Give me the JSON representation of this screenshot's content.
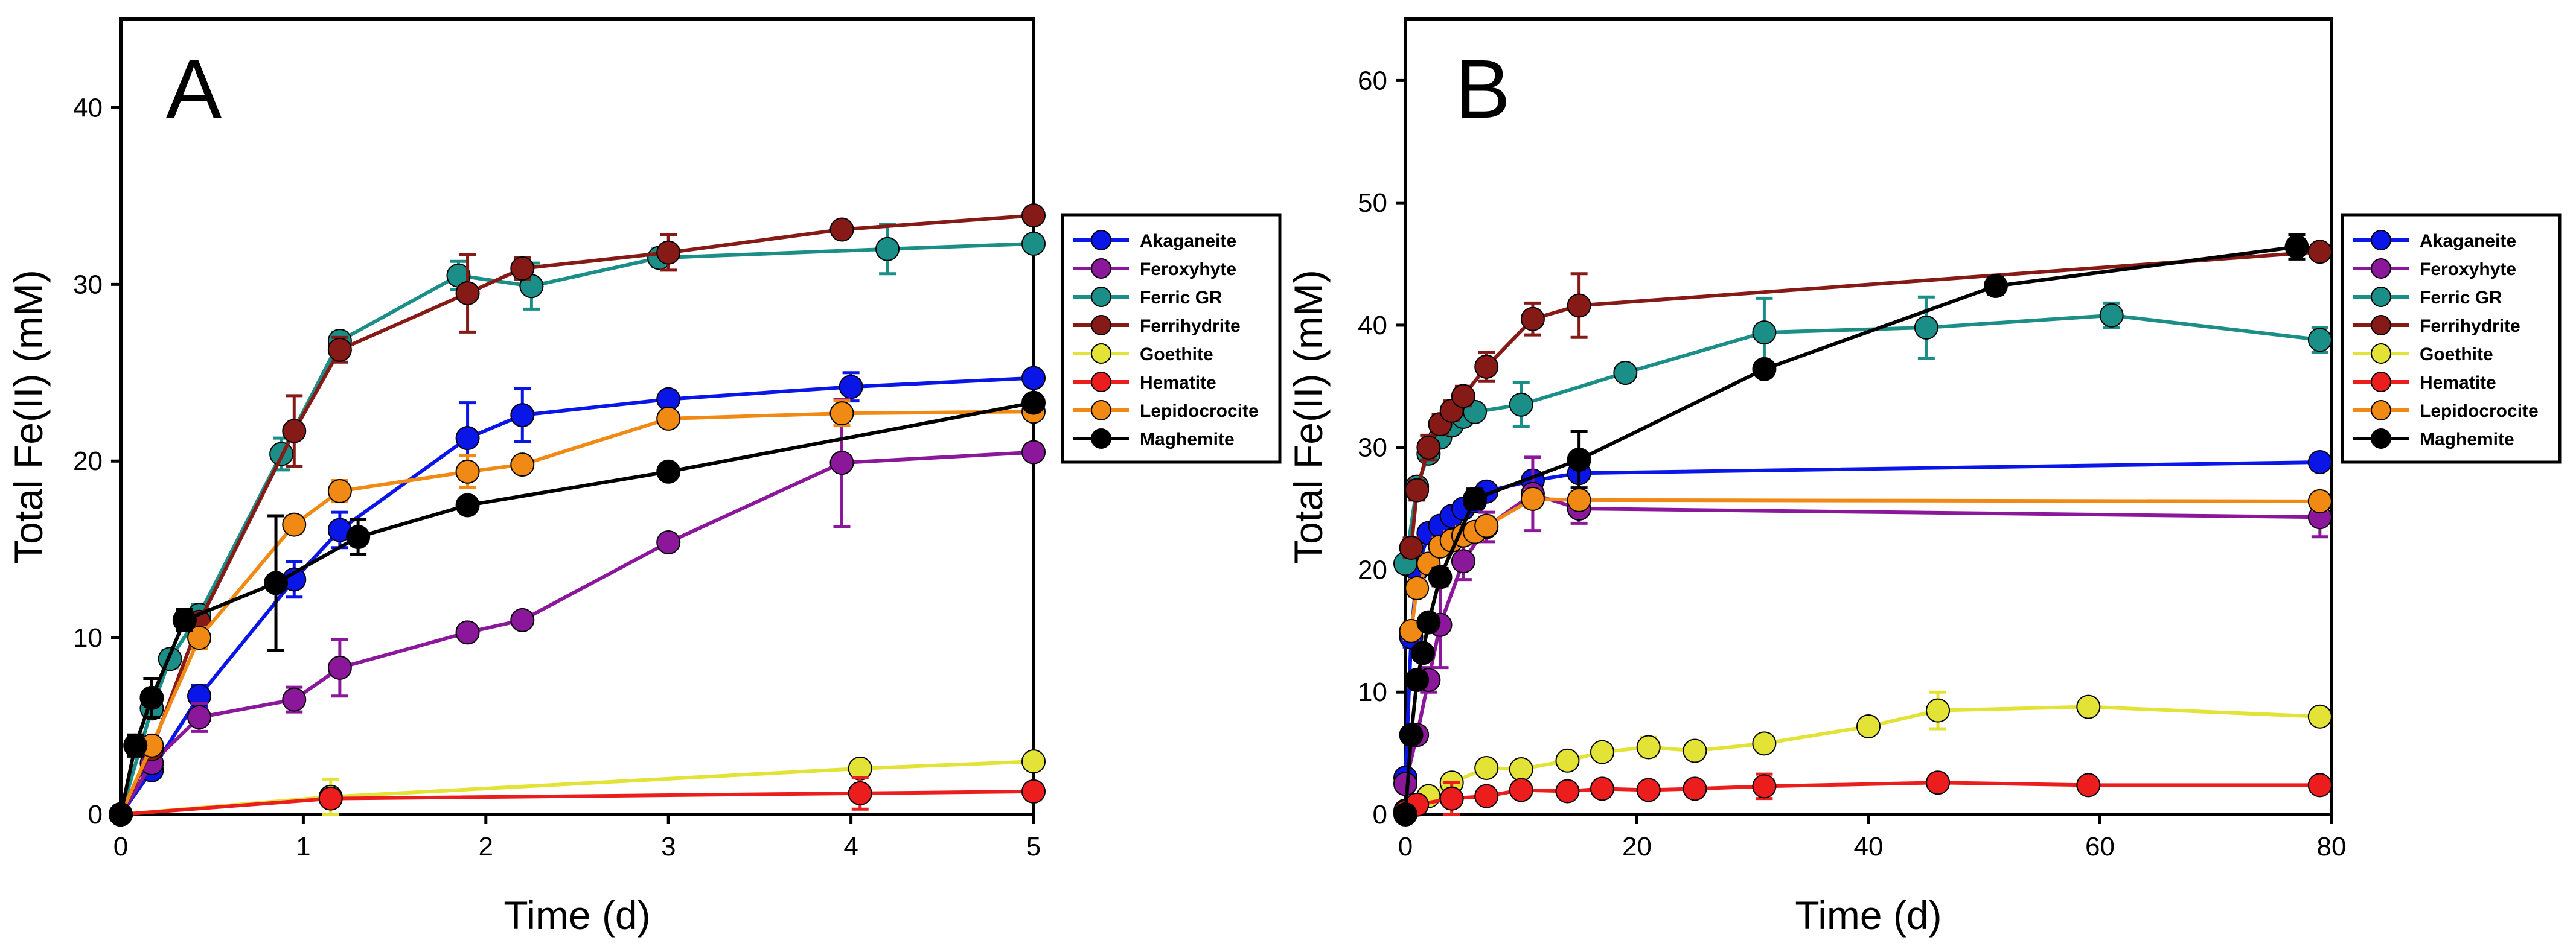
{
  "chart_data": [
    {
      "type": "line",
      "panel_label": "A",
      "xlabel": "Time (d)",
      "ylabel": "Total Fe(II) (mM)",
      "xlim": [
        0,
        5
      ],
      "ylim": [
        0,
        45
      ],
      "xticks": [
        0,
        1,
        2,
        3,
        4,
        5
      ],
      "yticks": [
        0,
        10,
        20,
        30,
        40
      ],
      "legend_position": "right",
      "series": [
        {
          "name": "Akaganeite",
          "color": "#0a16e8",
          "x": [
            0,
            0.17,
            0.43,
            0.95,
            1.2,
            1.9,
            2.2,
            3.0,
            4.0,
            5.0
          ],
          "y": [
            0,
            2.5,
            6.7,
            13.3,
            16.1,
            21.3,
            22.6,
            23.5,
            24.2,
            24.7
          ],
          "err": [
            0,
            0.3,
            0.6,
            1.0,
            1.0,
            2.0,
            1.5,
            0.4,
            0.8,
            0
          ]
        },
        {
          "name": "Feroxyhyte",
          "color": "#8b189a",
          "x": [
            0,
            0.17,
            0.43,
            0.95,
            1.2,
            1.9,
            2.2,
            3.0,
            3.95,
            5.0
          ],
          "y": [
            0,
            2.9,
            5.5,
            6.5,
            8.3,
            10.3,
            11.0,
            15.4,
            19.9,
            20.5
          ],
          "err": [
            0,
            0.3,
            0.8,
            0.7,
            1.6,
            0.4,
            0.3,
            0.3,
            3.6,
            0
          ]
        },
        {
          "name": "Ferric GR",
          "color": "#1b8e87",
          "x": [
            0,
            0.17,
            0.27,
            0.43,
            0.88,
            1.2,
            1.85,
            2.25,
            2.95,
            4.2,
            5.0
          ],
          "y": [
            0,
            6.0,
            8.8,
            11.3,
            20.4,
            26.8,
            30.5,
            29.9,
            31.5,
            32.0,
            32.3
          ],
          "err": [
            0,
            0.5,
            0.5,
            0.6,
            0.9,
            0.5,
            0.8,
            1.3,
            0.5,
            1.4,
            0
          ]
        },
        {
          "name": "Ferrihydrite",
          "color": "#861a16",
          "x": [
            0,
            0.17,
            0.43,
            0.95,
            1.2,
            1.9,
            2.2,
            3.0,
            3.95,
            5.0
          ],
          "y": [
            0,
            3.7,
            10.9,
            21.7,
            26.3,
            29.5,
            30.9,
            31.8,
            33.1,
            33.9
          ],
          "err": [
            0,
            0.4,
            0.5,
            2.0,
            0.7,
            2.2,
            0.6,
            1.0,
            0.3,
            0
          ]
        },
        {
          "name": "Goethite",
          "color": "#e3e337",
          "x": [
            0,
            1.15,
            4.05,
            5.0
          ],
          "y": [
            0,
            1.0,
            2.6,
            3.0
          ],
          "err": [
            0,
            1.0,
            0.4,
            0
          ]
        },
        {
          "name": "Hematite",
          "color": "#ec1d1d",
          "x": [
            0,
            1.15,
            4.05,
            5.0
          ],
          "y": [
            0,
            0.9,
            1.2,
            1.3
          ],
          "err": [
            0,
            0.3,
            0.9,
            0
          ]
        },
        {
          "name": "Lepidocrocite",
          "color": "#f18a14",
          "x": [
            0,
            0.17,
            0.43,
            0.95,
            1.2,
            1.9,
            2.2,
            3.0,
            3.95,
            5.0
          ],
          "y": [
            0,
            3.9,
            10.0,
            16.4,
            18.3,
            19.4,
            19.8,
            22.4,
            22.7,
            22.8
          ],
          "err": [
            0,
            0.4,
            0.6,
            0.5,
            0.6,
            0.9,
            0.4,
            0.4,
            0.7,
            0
          ]
        },
        {
          "name": "Maghemite",
          "color": "#000000",
          "x": [
            0,
            0.08,
            0.17,
            0.35,
            0.85,
            1.3,
            1.9,
            3.0,
            5.0
          ],
          "y": [
            0,
            3.9,
            6.6,
            11.0,
            13.1,
            15.7,
            17.5,
            19.4,
            23.3
          ],
          "err": [
            0,
            0.6,
            1.1,
            0.6,
            3.8,
            1.0,
            0.4,
            0.3,
            0
          ]
        }
      ]
    },
    {
      "type": "line",
      "panel_label": "B",
      "xlabel": "Time (d)",
      "ylabel": "Total Fe(II) (mM)",
      "xlim": [
        0,
        80
      ],
      "ylim": [
        0,
        65
      ],
      "xticks": [
        0,
        20,
        40,
        60,
        80
      ],
      "yticks": [
        0,
        10,
        20,
        30,
        40,
        50,
        60
      ],
      "legend_position": "right",
      "series": [
        {
          "name": "Akaganeite",
          "color": "#0a16e8",
          "x": [
            0,
            0.5,
            1,
            2,
            3,
            4,
            5,
            6,
            7,
            11,
            15,
            79
          ],
          "y": [
            3.0,
            14.5,
            20.0,
            23.0,
            23.6,
            24.4,
            25.0,
            25.6,
            26.4,
            27.3,
            27.9,
            28.8
          ],
          "err": [
            0.3,
            0.8,
            0.8,
            0.6,
            0.6,
            0.6,
            0.6,
            0.5,
            0.5,
            0.6,
            0.5,
            0.6
          ]
        },
        {
          "name": "Feroxyhyte",
          "color": "#8b189a",
          "x": [
            0,
            1,
            2,
            3,
            5,
            7,
            11,
            15,
            79
          ],
          "y": [
            2.5,
            6.5,
            11.0,
            15.5,
            20.7,
            23.5,
            26.2,
            25.0,
            24.3
          ],
          "err": [
            0.3,
            0.6,
            1.0,
            3.5,
            1.5,
            1.2,
            3.0,
            1.2,
            1.6
          ]
        },
        {
          "name": "Ferric GR",
          "color": "#1b8e87",
          "x": [
            0,
            1,
            2,
            3,
            4,
            5,
            6,
            10,
            19,
            31,
            45,
            61,
            79
          ],
          "y": [
            20.5,
            26.8,
            29.5,
            30.8,
            31.8,
            32.5,
            32.9,
            33.5,
            36.1,
            39.4,
            39.8,
            40.8,
            38.8
          ],
          "err": [
            0.5,
            0.6,
            0.6,
            0.6,
            0.6,
            0.6,
            0.6,
            1.8,
            0.6,
            2.8,
            2.5,
            1.0,
            1.0
          ]
        },
        {
          "name": "Ferrihydrite",
          "color": "#861a16",
          "x": [
            0.5,
            1,
            2,
            3,
            4,
            5,
            7,
            11,
            15,
            79
          ],
          "y": [
            21.8,
            26.5,
            30.0,
            31.9,
            33.0,
            34.2,
            36.6,
            40.5,
            41.6,
            46.0
          ],
          "err": [
            0.8,
            0.8,
            1.0,
            0.8,
            0.8,
            0.8,
            1.2,
            1.3,
            2.6,
            0.6
          ]
        },
        {
          "name": "Goethite",
          "color": "#e3e337",
          "x": [
            0,
            2,
            4,
            7,
            10,
            14,
            17,
            21,
            25,
            31,
            40,
            46,
            59,
            79
          ],
          "y": [
            0.3,
            1.5,
            2.6,
            3.8,
            3.7,
            4.4,
            5.1,
            5.5,
            5.2,
            5.8,
            7.2,
            8.5,
            8.8,
            8.0
          ],
          "err": [
            0.2,
            0.3,
            0.3,
            0.4,
            0.3,
            0.4,
            0.4,
            0.8,
            0.4,
            0.4,
            0.4,
            1.5,
            0.4,
            0.4
          ]
        },
        {
          "name": "Hematite",
          "color": "#ec1d1d",
          "x": [
            0,
            1,
            4,
            7,
            10,
            14,
            17,
            21,
            25,
            31,
            46,
            59,
            79
          ],
          "y": [
            0.2,
            0.8,
            1.3,
            1.5,
            2.0,
            1.9,
            2.1,
            2.0,
            2.1,
            2.3,
            2.6,
            2.4,
            2.4
          ],
          "err": [
            0.1,
            0.3,
            1.3,
            0.3,
            0.3,
            0.3,
            0.3,
            0.3,
            0.3,
            1.0,
            0.3,
            0.3,
            0.3
          ]
        },
        {
          "name": "Lepidocrocite",
          "color": "#f18a14",
          "x": [
            0.5,
            1,
            2,
            3,
            4,
            5,
            6,
            7,
            11,
            15,
            79
          ],
          "y": [
            15.0,
            18.5,
            20.5,
            21.9,
            22.4,
            22.8,
            23.1,
            23.6,
            25.8,
            25.7,
            25.6
          ],
          "err": [
            0.7,
            0.7,
            0.7,
            0.7,
            0.7,
            0.7,
            0.7,
            0.7,
            0.7,
            0.7,
            0.7
          ]
        },
        {
          "name": "Maghemite",
          "color": "#000000",
          "x": [
            0,
            0.5,
            1,
            1.5,
            2,
            3,
            6,
            15,
            31,
            51,
            77
          ],
          "y": [
            0,
            6.5,
            11.0,
            13.2,
            15.7,
            19.4,
            25.8,
            29.0,
            36.4,
            43.2,
            46.4
          ],
          "err": [
            0.2,
            0.5,
            0.5,
            0.6,
            0.6,
            0.7,
            0.8,
            2.3,
            0.5,
            0.7,
            1.0
          ]
        }
      ]
    }
  ]
}
